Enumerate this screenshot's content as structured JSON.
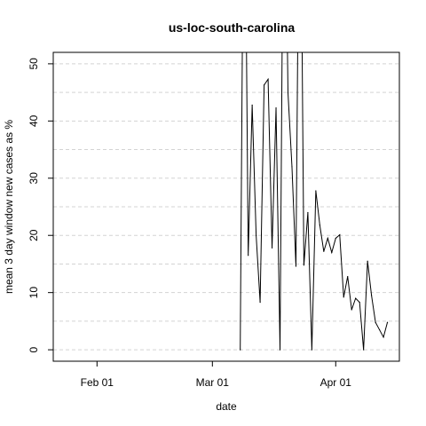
{
  "chart_data": {
    "type": "line",
    "title": "us-loc-south-carolina",
    "xlabel": "date",
    "ylabel": "mean  3  day window new cases as %",
    "x_tick_labels": [
      "Feb 01",
      "Mar 01",
      "Apr 01"
    ],
    "x_tick_dates": [
      "2020-02-01",
      "2020-03-01",
      "2020-04-01"
    ],
    "y_ticks": [
      0,
      10,
      20,
      30,
      40,
      50
    ],
    "xlim": [
      "2020-01-21",
      "2020-04-17"
    ],
    "ylim": [
      -2,
      52
    ],
    "grid": true,
    "line_color": "#000000",
    "grid_color": "#d3d3d3",
    "series": [
      {
        "x": [
          "2020-03-08",
          "2020-03-09",
          "2020-03-10",
          "2020-03-11",
          "2020-03-12",
          "2020-03-13",
          "2020-03-14",
          "2020-03-15",
          "2020-03-16",
          "2020-03-17",
          "2020-03-18",
          "2020-03-19",
          "2020-03-20",
          "2020-03-21",
          "2020-03-22",
          "2020-03-23",
          "2020-03-24",
          "2020-03-25",
          "2020-03-26",
          "2020-03-27",
          "2020-03-28",
          "2020-03-29",
          "2020-03-30",
          "2020-03-31",
          "2020-04-01",
          "2020-04-02",
          "2020-04-03",
          "2020-04-04",
          "2020-04-05",
          "2020-04-06",
          "2020-04-07",
          "2020-04-08",
          "2020-04-09",
          "2020-04-10",
          "2020-04-11",
          "2020-04-12",
          "2020-04-13",
          "2020-04-14"
        ],
        "values": [
          0,
          100,
          16.5,
          42.8,
          20.0,
          8.3,
          46.3,
          47.3,
          17.8,
          42.3,
          0,
          100,
          45.0,
          32.0,
          14.6,
          100,
          14.8,
          24.0,
          0,
          27.8,
          21.8,
          17.2,
          19.5,
          17.0,
          19.5,
          20.1,
          9.2,
          12.8,
          7.0,
          9.0,
          8.3,
          0,
          15.5,
          9.5,
          4.8,
          3.5,
          2.2,
          4.8
        ]
      }
    ]
  }
}
